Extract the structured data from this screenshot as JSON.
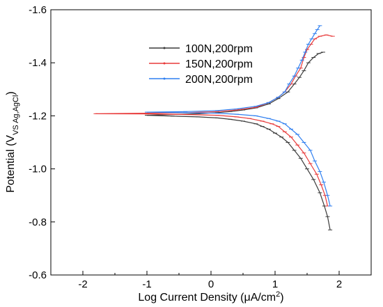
{
  "chart_data": {
    "type": "line",
    "title": "",
    "xlabel": "Log Current Density (μA/cm²)",
    "xlabel_parts": {
      "main": "Log Current Density (μA/cm",
      "sup": "2",
      "end": ")"
    },
    "ylabel": "Potential (V VS Ag,AgCl)",
    "ylabel_parts": {
      "main": "Potential (V",
      "sub": "VS Ag,AgCl",
      "end": ")"
    },
    "xlim": [
      -2.5,
      2.5
    ],
    "ylim": [
      -1.6,
      -0.6
    ],
    "y_inverted": true,
    "xticks": [
      -2,
      -1,
      0,
      1,
      2
    ],
    "yticks": [
      -0.6,
      -0.8,
      -1.0,
      -1.2,
      -1.4,
      -1.6
    ],
    "xtick_labels": [
      "-2",
      "-1",
      "0",
      "1",
      "2"
    ],
    "ytick_labels": [
      "-0.6",
      "-0.8",
      "-1.0",
      "-1.2",
      "-1.4",
      "-1.6"
    ],
    "grid": false,
    "legend_position": "top-center",
    "series": [
      {
        "name": "100N,200rpm",
        "color": "#3a3a3a",
        "points": [
          [
            1.86,
            -0.77
          ],
          [
            1.82,
            -0.82
          ],
          [
            1.77,
            -0.86
          ],
          [
            1.7,
            -0.91
          ],
          [
            1.6,
            -0.96
          ],
          [
            1.5,
            -1.0
          ],
          [
            1.4,
            -1.04
          ],
          [
            1.3,
            -1.07
          ],
          [
            1.2,
            -1.1
          ],
          [
            1.1,
            -1.12
          ],
          [
            1.0,
            -1.135
          ],
          [
            0.9,
            -1.15
          ],
          [
            0.8,
            -1.16
          ],
          [
            0.7,
            -1.17
          ],
          [
            0.5,
            -1.18
          ],
          [
            0.3,
            -1.187
          ],
          [
            0.1,
            -1.192
          ],
          [
            -0.2,
            -1.196
          ],
          [
            -0.6,
            -1.199
          ],
          [
            -1.0,
            -1.202
          ],
          [
            -0.6,
            -1.205
          ],
          [
            -0.2,
            -1.208
          ],
          [
            0.1,
            -1.212
          ],
          [
            0.3,
            -1.216
          ],
          [
            0.5,
            -1.222
          ],
          [
            0.7,
            -1.23
          ],
          [
            0.9,
            -1.245
          ],
          [
            1.05,
            -1.265
          ],
          [
            1.2,
            -1.29
          ],
          [
            1.3,
            -1.32
          ],
          [
            1.38,
            -1.345
          ],
          [
            1.45,
            -1.37
          ],
          [
            1.52,
            -1.4
          ],
          [
            1.6,
            -1.42
          ],
          [
            1.68,
            -1.435
          ],
          [
            1.75,
            -1.44
          ]
        ]
      },
      {
        "name": "150N,200rpm",
        "color": "#e83a3a",
        "points": [
          [
            1.82,
            -0.86
          ],
          [
            1.78,
            -0.9
          ],
          [
            1.72,
            -0.94
          ],
          [
            1.65,
            -0.98
          ],
          [
            1.55,
            -1.02
          ],
          [
            1.45,
            -1.06
          ],
          [
            1.35,
            -1.09
          ],
          [
            1.25,
            -1.12
          ],
          [
            1.15,
            -1.14
          ],
          [
            1.05,
            -1.16
          ],
          [
            0.95,
            -1.17
          ],
          [
            0.8,
            -1.18
          ],
          [
            0.6,
            -1.19
          ],
          [
            0.4,
            -1.196
          ],
          [
            0.1,
            -1.202
          ],
          [
            -0.4,
            -1.205
          ],
          [
            -1.0,
            -1.207
          ],
          [
            -1.8,
            -1.208
          ],
          [
            -1.0,
            -1.21
          ],
          [
            -0.4,
            -1.212
          ],
          [
            0.1,
            -1.216
          ],
          [
            0.4,
            -1.222
          ],
          [
            0.7,
            -1.232
          ],
          [
            0.9,
            -1.25
          ],
          [
            1.05,
            -1.27
          ],
          [
            1.15,
            -1.29
          ],
          [
            1.25,
            -1.32
          ],
          [
            1.32,
            -1.35
          ],
          [
            1.4,
            -1.38
          ],
          [
            1.45,
            -1.42
          ],
          [
            1.5,
            -1.45
          ],
          [
            1.56,
            -1.47
          ],
          [
            1.62,
            -1.49
          ],
          [
            1.7,
            -1.5
          ],
          [
            1.8,
            -1.505
          ],
          [
            1.9,
            -1.5
          ]
        ]
      },
      {
        "name": "200N,200rpm",
        "color": "#2f7ff0",
        "points": [
          [
            1.86,
            -0.86
          ],
          [
            1.82,
            -0.9
          ],
          [
            1.76,
            -0.95
          ],
          [
            1.7,
            -0.99
          ],
          [
            1.62,
            -1.03
          ],
          [
            1.55,
            -1.07
          ],
          [
            1.45,
            -1.1
          ],
          [
            1.35,
            -1.13
          ],
          [
            1.25,
            -1.15
          ],
          [
            1.15,
            -1.17
          ],
          [
            1.05,
            -1.18
          ],
          [
            0.9,
            -1.19
          ],
          [
            0.7,
            -1.2
          ],
          [
            0.4,
            -1.206
          ],
          [
            0.1,
            -1.21
          ],
          [
            -0.4,
            -1.212
          ],
          [
            -1.0,
            -1.214
          ],
          [
            -0.4,
            -1.216
          ],
          [
            0.1,
            -1.22
          ],
          [
            0.4,
            -1.226
          ],
          [
            0.7,
            -1.236
          ],
          [
            0.9,
            -1.25
          ],
          [
            1.05,
            -1.27
          ],
          [
            1.15,
            -1.29
          ],
          [
            1.22,
            -1.32
          ],
          [
            1.3,
            -1.35
          ],
          [
            1.36,
            -1.38
          ],
          [
            1.42,
            -1.41
          ],
          [
            1.47,
            -1.44
          ],
          [
            1.52,
            -1.47
          ],
          [
            1.57,
            -1.49
          ],
          [
            1.62,
            -1.51
          ],
          [
            1.66,
            -1.525
          ],
          [
            1.7,
            -1.54
          ]
        ]
      }
    ]
  }
}
